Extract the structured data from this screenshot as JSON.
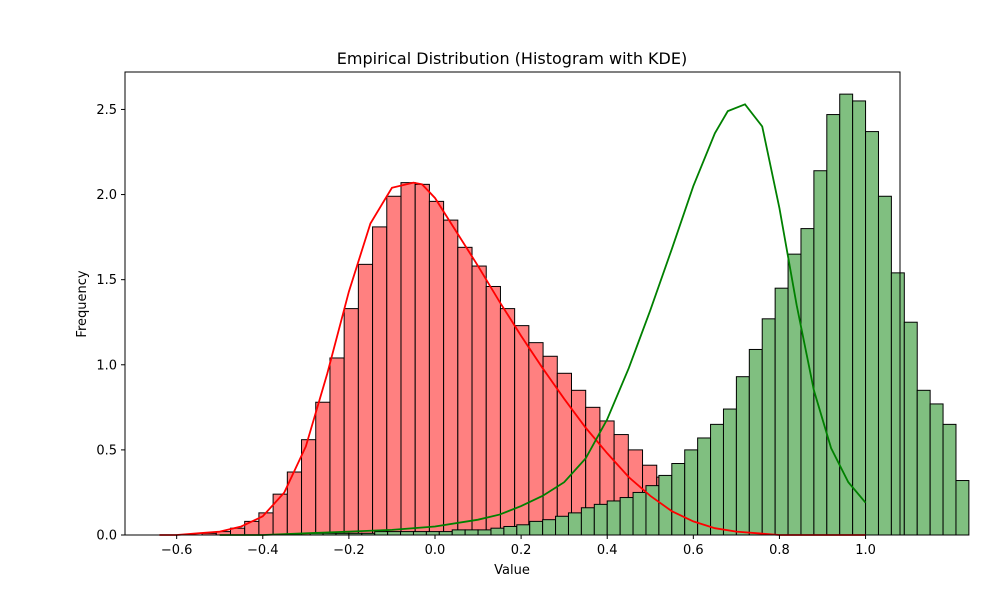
{
  "chart_data": {
    "type": "histogram",
    "title": "Empirical Distribution (Histogram with KDE)",
    "xlabel": "Value",
    "ylabel": "Frequency",
    "xlim": [
      -0.72,
      1.08
    ],
    "ylim": [
      0,
      2.72
    ],
    "xticks": [
      -0.6,
      -0.4,
      -0.2,
      0.0,
      0.2,
      0.4,
      0.6,
      0.8,
      1.0
    ],
    "xtick_labels": [
      "−0.6",
      "−0.4",
      "−0.2",
      "0.0",
      "0.2",
      "0.4",
      "0.6",
      "0.8",
      "1.0"
    ],
    "yticks": [
      0,
      0.5,
      1.0,
      1.5,
      2.0,
      2.5
    ],
    "ytick_labels": [
      "0.0",
      "0.5",
      "1.0",
      "1.5",
      "2.0",
      "2.5"
    ],
    "grid": false,
    "legend": "none",
    "series": [
      {
        "color": "#ff0000",
        "bar_fill": "#ff8080",
        "kde_color": "#ff0000",
        "bin_start": -0.64,
        "bin_width": 0.033,
        "values": [
          0.0,
          0.0,
          0.0,
          0.01,
          0.02,
          0.04,
          0.08,
          0.13,
          0.24,
          0.37,
          0.56,
          0.78,
          1.04,
          1.33,
          1.59,
          1.81,
          1.99,
          2.07,
          2.06,
          1.96,
          1.85,
          1.69,
          1.58,
          1.46,
          1.33,
          1.23,
          1.13,
          1.05,
          0.95,
          0.85,
          0.75,
          0.67,
          0.59,
          0.5,
          0.41,
          0.34,
          0.28,
          0.22,
          0.17,
          0.13,
          0.1,
          0.07,
          0.05,
          0.03,
          0.02,
          0.01,
          0.01,
          0.0,
          0.0
        ],
        "kde_x": [
          -0.64,
          -0.6,
          -0.55,
          -0.5,
          -0.45,
          -0.4,
          -0.35,
          -0.3,
          -0.25,
          -0.2,
          -0.15,
          -0.1,
          -0.05,
          -0.03,
          0.0,
          0.05,
          0.1,
          0.15,
          0.2,
          0.25,
          0.3,
          0.35,
          0.4,
          0.45,
          0.5,
          0.55,
          0.6,
          0.65,
          0.7,
          0.75,
          0.8,
          0.85,
          0.9,
          0.95,
          1.0
        ],
        "kde_y": [
          0.0,
          0.0,
          0.01,
          0.02,
          0.05,
          0.11,
          0.25,
          0.52,
          0.95,
          1.43,
          1.83,
          2.04,
          2.07,
          2.06,
          1.98,
          1.78,
          1.58,
          1.37,
          1.17,
          0.98,
          0.8,
          0.63,
          0.48,
          0.34,
          0.23,
          0.14,
          0.08,
          0.04,
          0.02,
          0.01,
          0.0,
          0.0,
          0.0,
          0.0,
          0.0
        ]
      },
      {
        "color": "#008000",
        "bar_fill": "#80bf80",
        "kde_color": "#008000",
        "bin_start": -0.5,
        "bin_width": 0.03,
        "values": [
          0.0,
          0.0,
          0.0,
          0.0,
          0.0,
          0.0,
          0.0,
          0.01,
          0.01,
          0.01,
          0.01,
          0.01,
          0.02,
          0.02,
          0.02,
          0.02,
          0.02,
          0.02,
          0.03,
          0.03,
          0.03,
          0.04,
          0.05,
          0.06,
          0.08,
          0.09,
          0.11,
          0.13,
          0.16,
          0.18,
          0.2,
          0.22,
          0.25,
          0.29,
          0.35,
          0.42,
          0.5,
          0.57,
          0.65,
          0.74,
          0.93,
          1.09,
          1.27,
          1.45,
          1.65,
          1.8,
          2.14,
          2.47,
          2.59,
          2.55,
          2.37,
          1.99,
          1.54,
          1.25,
          0.85,
          0.77,
          0.65,
          0.32
        ],
        "kde_x": [
          -0.5,
          -0.4,
          -0.3,
          -0.2,
          -0.1,
          0.0,
          0.1,
          0.15,
          0.2,
          0.25,
          0.3,
          0.35,
          0.4,
          0.45,
          0.5,
          0.55,
          0.6,
          0.65,
          0.68,
          0.72,
          0.76,
          0.8,
          0.84,
          0.88,
          0.92,
          0.96,
          1.0
        ],
        "kde_y": [
          0.0,
          0.0,
          0.01,
          0.02,
          0.03,
          0.05,
          0.09,
          0.12,
          0.17,
          0.23,
          0.31,
          0.45,
          0.68,
          0.98,
          1.32,
          1.68,
          2.05,
          2.36,
          2.49,
          2.53,
          2.4,
          1.92,
          1.35,
          0.85,
          0.51,
          0.31,
          0.19
        ]
      }
    ]
  }
}
